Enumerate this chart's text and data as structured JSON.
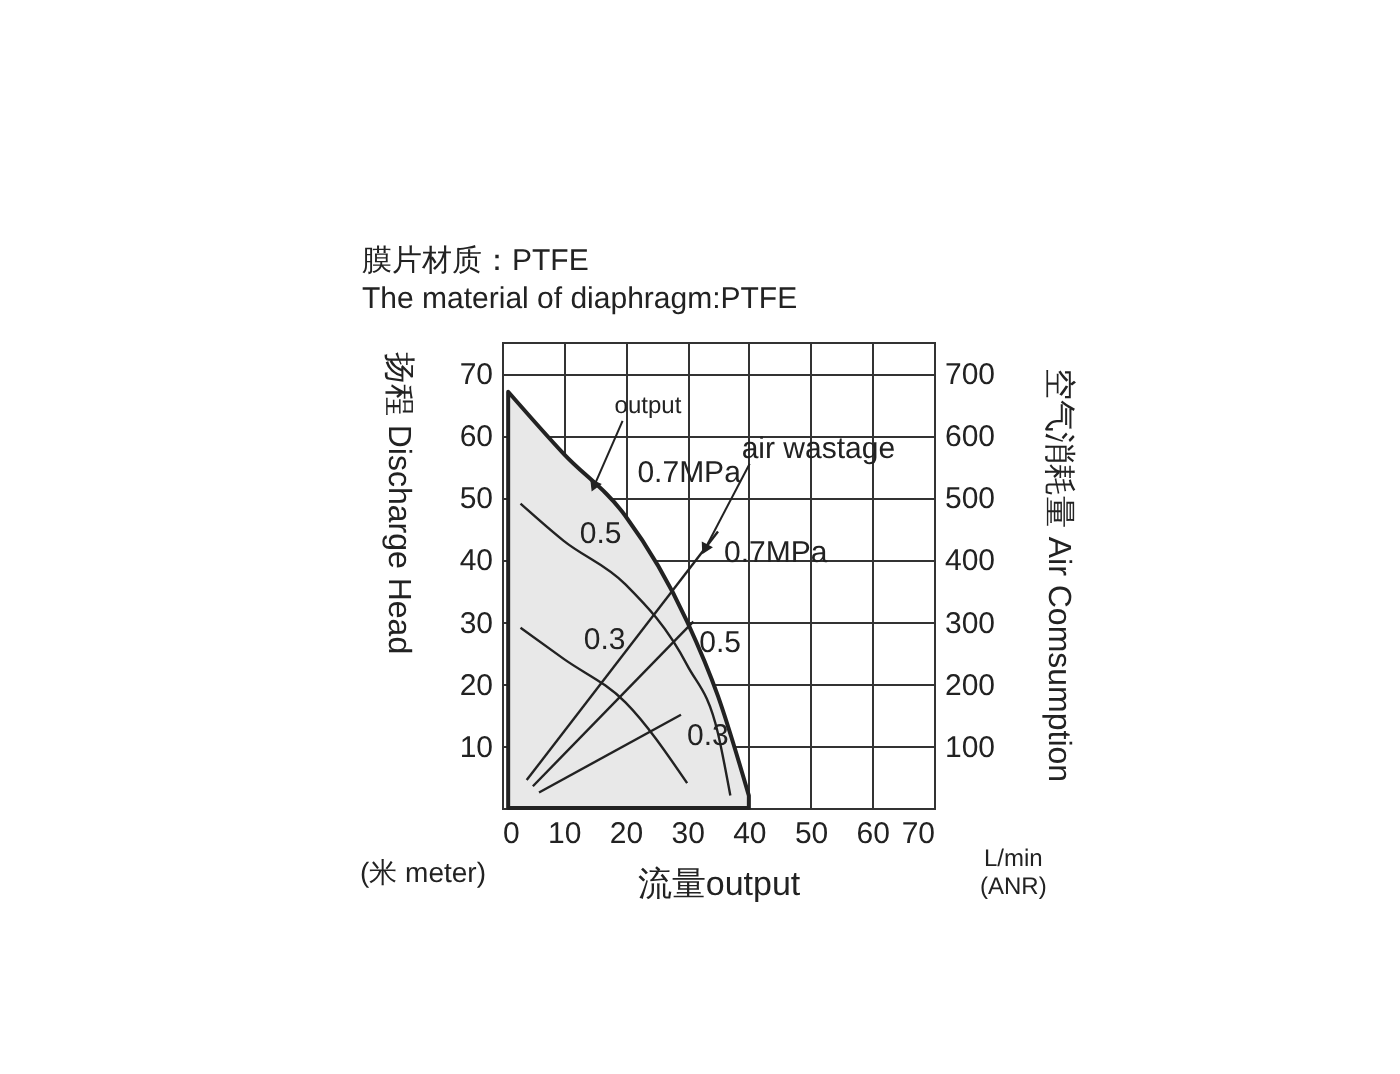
{
  "chart_data": {
    "type": "line",
    "title": "膜片材质：PTFE",
    "subtitle": "The material of diaphragm:PTFE",
    "xlabel": "流量output",
    "ylabel": "扬程 Discharge Head",
    "y2label": "空气消耗量 Air Comsumption",
    "xlim": [
      0,
      70
    ],
    "xticks": [
      0,
      10,
      20,
      30,
      40,
      50,
      60,
      70
    ],
    "ylim": [
      0,
      75
    ],
    "yticks": [
      10,
      20,
      30,
      40,
      50,
      60,
      70
    ],
    "y2lim": [
      0,
      750
    ],
    "y2ticks": [
      100,
      200,
      300,
      400,
      500,
      600,
      700
    ],
    "grid": true,
    "line_style": "solid",
    "series": [
      {
        "type": "area",
        "color": "#e8e8e8",
        "x": [
          1,
          10,
          20,
          30,
          35,
          40
        ],
        "values": [
          67,
          57,
          47,
          30,
          18,
          2
        ]
      },
      {
        "color": "#222222",
        "x": [
          3,
          10,
          20,
          30,
          35,
          37
        ],
        "values": [
          49,
          43,
          36,
          23,
          12,
          2
        ]
      },
      {
        "color": "#222222",
        "x": [
          3,
          10,
          20,
          30
        ],
        "values": [
          29,
          24,
          17,
          4
        ]
      },
      {
        "name": "0.7MPa",
        "color": "#222222",
        "axis": "y2",
        "x": [
          4,
          35
        ],
        "values": [
          45,
          445
        ]
      },
      {
        "name": "0.5",
        "color": "#222222",
        "axis": "y2",
        "x": [
          5,
          31
        ],
        "values": [
          35,
          300
        ]
      },
      {
        "name": "0.3",
        "color": "#222222",
        "axis": "y2",
        "x": [
          6,
          29
        ],
        "values": [
          25,
          150
        ]
      }
    ],
    "annotations": [
      {
        "text": "output",
        "x": 15,
        "y": 52
      },
      {
        "text": "0.7MPa",
        "x": 20,
        "y": 47
      },
      {
        "text": "0.5",
        "x": 10,
        "y": 43
      },
      {
        "text": "0.3",
        "x": 10,
        "y": 24
      },
      {
        "text": "air wastage",
        "x": 33,
        "y": 41.9
      },
      "(米 meter)",
      "L/min\n(ANR)"
    ]
  }
}
